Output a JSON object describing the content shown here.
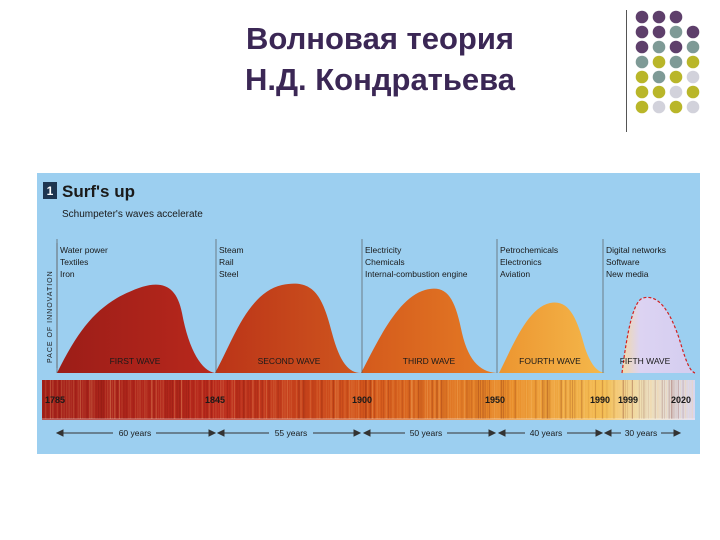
{
  "slide": {
    "title_line1": "Волновая теория",
    "title_line2": "Н.Д. Кондратьева"
  },
  "figure": {
    "number": "1",
    "heading": "Surf's up",
    "subheading": "Schumpeter's waves accelerate",
    "y_axis_label": "PACE OF INNOVATION",
    "waves": [
      {
        "name": "FIRST WAVE",
        "technologies": [
          "Water power",
          "Textiles",
          "Iron"
        ],
        "start": "1785",
        "duration": "60 years"
      },
      {
        "name": "SECOND WAVE",
        "technologies": [
          "Steam",
          "Rail",
          "Steel"
        ],
        "start": "1845",
        "duration": "55 years"
      },
      {
        "name": "THIRD WAVE",
        "technologies": [
          "Electricity",
          "Chemicals",
          "Internal-combustion engine"
        ],
        "start": "1900",
        "duration": "50 years"
      },
      {
        "name": "FOURTH WAVE",
        "technologies": [
          "Petrochemicals",
          "Electronics",
          "Aviation"
        ],
        "start": "1950",
        "duration": "40 years"
      },
      {
        "name": "FIFTH WAVE",
        "technologies": [
          "Digital networks",
          "Software",
          "New media"
        ],
        "start": "1990",
        "duration": "30 years"
      }
    ],
    "extra_years": [
      "1999",
      "2020"
    ],
    "colors": {
      "panel_bg": "#9ccff0",
      "wave1": "#b0231c",
      "wave2": "#c5431b",
      "wave3": "#db6a1e",
      "wave4": "#f0a33a",
      "wave5": "#d8d0f0",
      "title": "#3b2755",
      "dot_purple": "#5e3f6b",
      "dot_teal": "#7e9a96",
      "dot_olive": "#b9b629",
      "dot_grey": "#d2d2db"
    }
  }
}
